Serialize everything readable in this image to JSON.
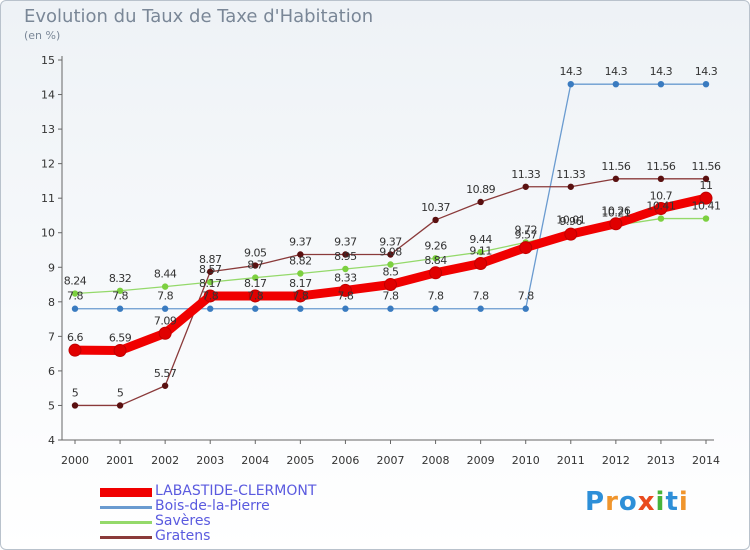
{
  "title": "Evolution du Taux de Taxe d'Habitation",
  "subtitle": "(en %)",
  "logo": {
    "letters": [
      "P",
      "r",
      "o",
      "x",
      "i",
      "t",
      "i"
    ],
    "colors": [
      "#2d8fd8",
      "#f0952c",
      "#2d8fd8",
      "#e94b1e",
      "#47b43a",
      "#2d8fd8",
      "#f0952c"
    ]
  },
  "chart_data": {
    "type": "line",
    "x": [
      "2000",
      "2001",
      "2002",
      "2003",
      "2004",
      "2005",
      "2006",
      "2007",
      "2008",
      "2009",
      "2010",
      "2011",
      "2012",
      "2013",
      "2014"
    ],
    "ylim": [
      4,
      15
    ],
    "yticks": [
      "4",
      "5",
      "6",
      "7",
      "8",
      "9",
      "10",
      "11",
      "12",
      "13",
      "14",
      "15"
    ],
    "grid": false,
    "legend_position": "bottom-left",
    "series": [
      {
        "name": "LABASTIDE-CLERMONT",
        "color": "#f00000",
        "marker_color": "#e00000",
        "width": 9,
        "values": [
          6.6,
          6.59,
          7.09,
          8.17,
          8.17,
          8.17,
          8.33,
          8.5,
          8.84,
          9.11,
          9.57,
          9.96,
          10.26,
          10.7,
          11
        ],
        "labels": [
          "6.6",
          "6.59",
          "7.09",
          "8.17",
          "8.17",
          "8.17",
          "8.33",
          "8.5",
          "8.84",
          "9.11",
          "9.57",
          "9.96",
          "10.26",
          "10.7",
          "11"
        ]
      },
      {
        "name": "Bois-de-la-Pierre",
        "color": "#6a9bd0",
        "marker_color": "#3a7bc0",
        "width": 1.3,
        "values": [
          7.8,
          7.8,
          7.8,
          7.8,
          7.8,
          7.8,
          7.8,
          7.8,
          7.8,
          7.8,
          7.8,
          14.3,
          14.3,
          14.3,
          14.3
        ],
        "labels": [
          "7.8",
          "7.8",
          "7.8",
          "7.8",
          "7.8",
          "7.8",
          "7.8",
          "7.8",
          "7.8",
          "7.8",
          "7.8",
          "14.3",
          "14.3",
          "14.3",
          "14.3"
        ]
      },
      {
        "name": "Savères",
        "color": "#94d96a",
        "marker_color": "#7cd040",
        "width": 1.3,
        "values": [
          8.24,
          8.32,
          8.44,
          8.57,
          8.7,
          8.82,
          8.95,
          9.08,
          9.26,
          9.44,
          9.72,
          10.01,
          10.21,
          10.41,
          10.41
        ],
        "labels": [
          "8.24",
          "8.32",
          "8.44",
          "8.57",
          "8.7",
          "8.82",
          "8.95",
          "9.08",
          "9.26",
          "9.44",
          "9.72",
          "10.01",
          "10.21",
          "10.41",
          "10.41"
        ]
      },
      {
        "name": "Gratens",
        "color": "#8a3a3a",
        "marker_color": "#5a1010",
        "width": 1.3,
        "values": [
          5,
          5,
          5.57,
          8.87,
          9.05,
          9.37,
          9.37,
          9.37,
          10.37,
          10.89,
          11.33,
          11.33,
          11.56,
          11.56,
          11.56
        ],
        "labels": [
          "5",
          "5",
          "5.57",
          "8.87",
          "9.05",
          "9.37",
          "9.37",
          "9.37",
          "10.37",
          "10.89",
          "11.33",
          "11.33",
          "11.56",
          "11.56",
          "11.56"
        ]
      }
    ]
  }
}
